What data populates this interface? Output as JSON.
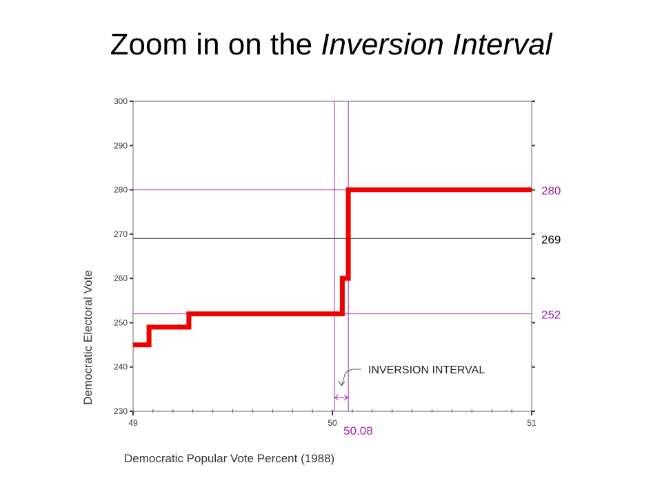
{
  "slide": {
    "title_prefix": "Zoom in on the ",
    "title_emphasis": "Inversion Interval"
  },
  "chart_data": {
    "type": "line",
    "title": "",
    "xlabel": "Democratic Popular Vote Percent (1988)",
    "ylabel": "Democratic Electoral Vote",
    "xlim": [
      49,
      51
    ],
    "ylim": [
      230,
      300
    ],
    "x_ticks": [
      49,
      50,
      51
    ],
    "x_tick_labels": [
      "49",
      "50",
      "51"
    ],
    "y_ticks": [
      230,
      240,
      250,
      260,
      270,
      280,
      290,
      300
    ],
    "y_tick_labels": [
      "230",
      "240",
      "250",
      "260",
      "270",
      "280",
      "290",
      "300"
    ],
    "grid": false,
    "series": [
      {
        "color": "#ee0000",
        "step": true,
        "x": [
          49.0,
          49.08,
          49.08,
          49.28,
          49.28,
          50.05,
          50.05,
          50.08,
          50.08,
          51.0
        ],
        "y": [
          245,
          245,
          249,
          249,
          252,
          252,
          260,
          260,
          280,
          280
        ]
      }
    ],
    "reference_lines": [
      {
        "orientation": "horizontal",
        "value": 280,
        "label": "280",
        "color": "#a020a0"
      },
      {
        "orientation": "horizontal",
        "value": 269,
        "label": "269",
        "color": "#000000"
      },
      {
        "orientation": "horizontal",
        "value": 252,
        "label": "252",
        "color": "#a020a0"
      },
      {
        "orientation": "vertical",
        "value": 50.01,
        "label": "",
        "color": "#a020a0"
      },
      {
        "orientation": "vertical",
        "value": 50.08,
        "label": "50.08",
        "color": "#a020a0"
      }
    ],
    "annotations": [
      {
        "text": "INVERSION INTERVAL",
        "range": [
          50.01,
          50.08
        ]
      }
    ]
  }
}
